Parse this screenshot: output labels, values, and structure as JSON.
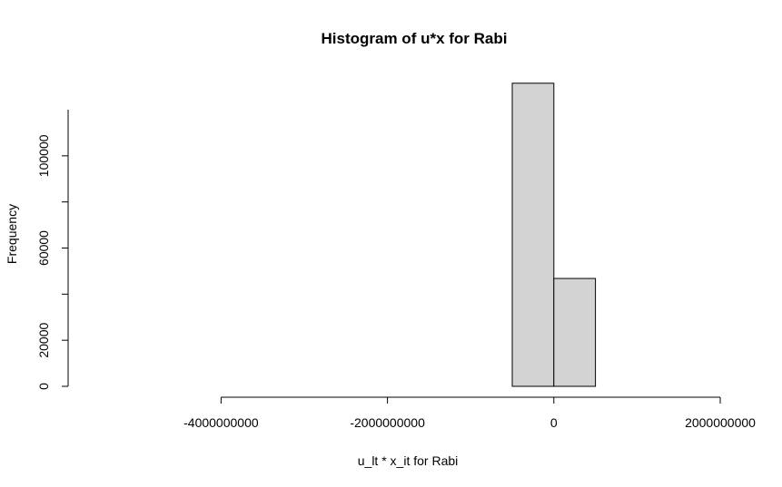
{
  "chart_data": {
    "type": "bar",
    "title": "Histogram of u*x for Rabi",
    "xlabel": "u_lt * x_it for Rabi",
    "ylabel": "Frequency",
    "xlim": [
      -5500000000,
      2000000000
    ],
    "ylim": [
      0,
      120000
    ],
    "x_ticks": [
      -4000000000,
      -2000000000,
      0,
      2000000000
    ],
    "x_tick_labels": [
      "-4000000000",
      "-2000000000",
      "0",
      "2000000000"
    ],
    "y_ticks": [
      0,
      20000,
      60000,
      100000
    ],
    "y_tick_labels": [
      "0",
      "20000",
      "60000",
      "100000"
    ],
    "bin_edges": [
      -5500000000,
      -5000000000,
      -4500000000,
      -4000000000,
      -3500000000,
      -3000000000,
      -2500000000,
      -2000000000,
      -1500000000,
      -1000000000,
      -500000000,
      0,
      500000000,
      1000000000,
      1500000000,
      2000000000
    ],
    "counts": [
      0,
      0,
      0,
      0,
      0,
      0,
      0,
      0,
      0,
      0,
      131500,
      46800,
      0,
      0,
      0
    ],
    "bar_color": "#d3d3d3",
    "grid": false
  }
}
